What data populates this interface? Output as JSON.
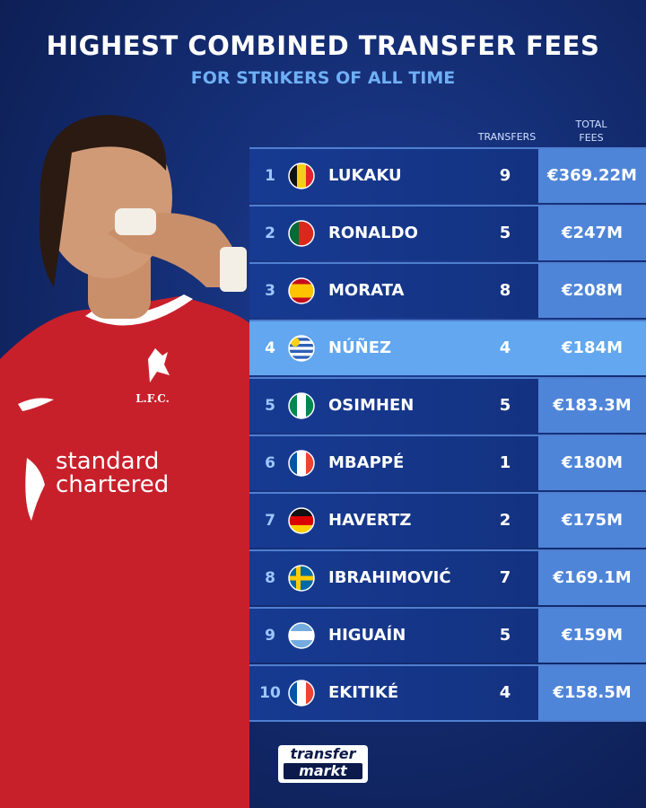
{
  "header": {
    "title": "HIGHEST COMBINED TRANSFER FEES",
    "subtitle": "FOR STRIKERS OF ALL TIME"
  },
  "table": {
    "columns": [
      "TRANSFERS",
      "TOTAL FEES"
    ],
    "rows": [
      {
        "rank": 1,
        "player": "LUKAKU",
        "transfers": 9,
        "fees": "€369.22M"
      },
      {
        "rank": 2,
        "player": "RONALDO",
        "transfers": 5,
        "fees": "€247M"
      },
      {
        "rank": 3,
        "player": "MORATA",
        "transfers": 8,
        "fees": "€208M"
      },
      {
        "rank": 4,
        "player": "NÚÑEZ",
        "transfers": 4,
        "fees": "€184M"
      },
      {
        "rank": 5,
        "player": "OSIMHEN",
        "transfers": 5,
        "fees": "€183.3M"
      },
      {
        "rank": 6,
        "player": "MBAPPÉ",
        "transfers": 1,
        "fees": "€180M"
      },
      {
        "rank": 7,
        "player": "HAVERTZ",
        "transfers": 2,
        "fees": "€175M"
      },
      {
        "rank": 8,
        "player": "IBRAHIMOVIĆ",
        "transfers": 7,
        "fees": "€169.1M"
      },
      {
        "rank": 9,
        "player": "HIGUAÍN",
        "transfers": 5,
        "fees": "€159M"
      },
      {
        "rank": 10,
        "player": "EKITIKÉ",
        "transfers": 4,
        "fees": "€158.5M"
      }
    ]
  },
  "photo": {
    "crest": "L.F.C.",
    "sponsor": [
      "standard",
      "chartered"
    ]
  },
  "logo": {
    "line1": "transfer",
    "line2": "markt"
  }
}
